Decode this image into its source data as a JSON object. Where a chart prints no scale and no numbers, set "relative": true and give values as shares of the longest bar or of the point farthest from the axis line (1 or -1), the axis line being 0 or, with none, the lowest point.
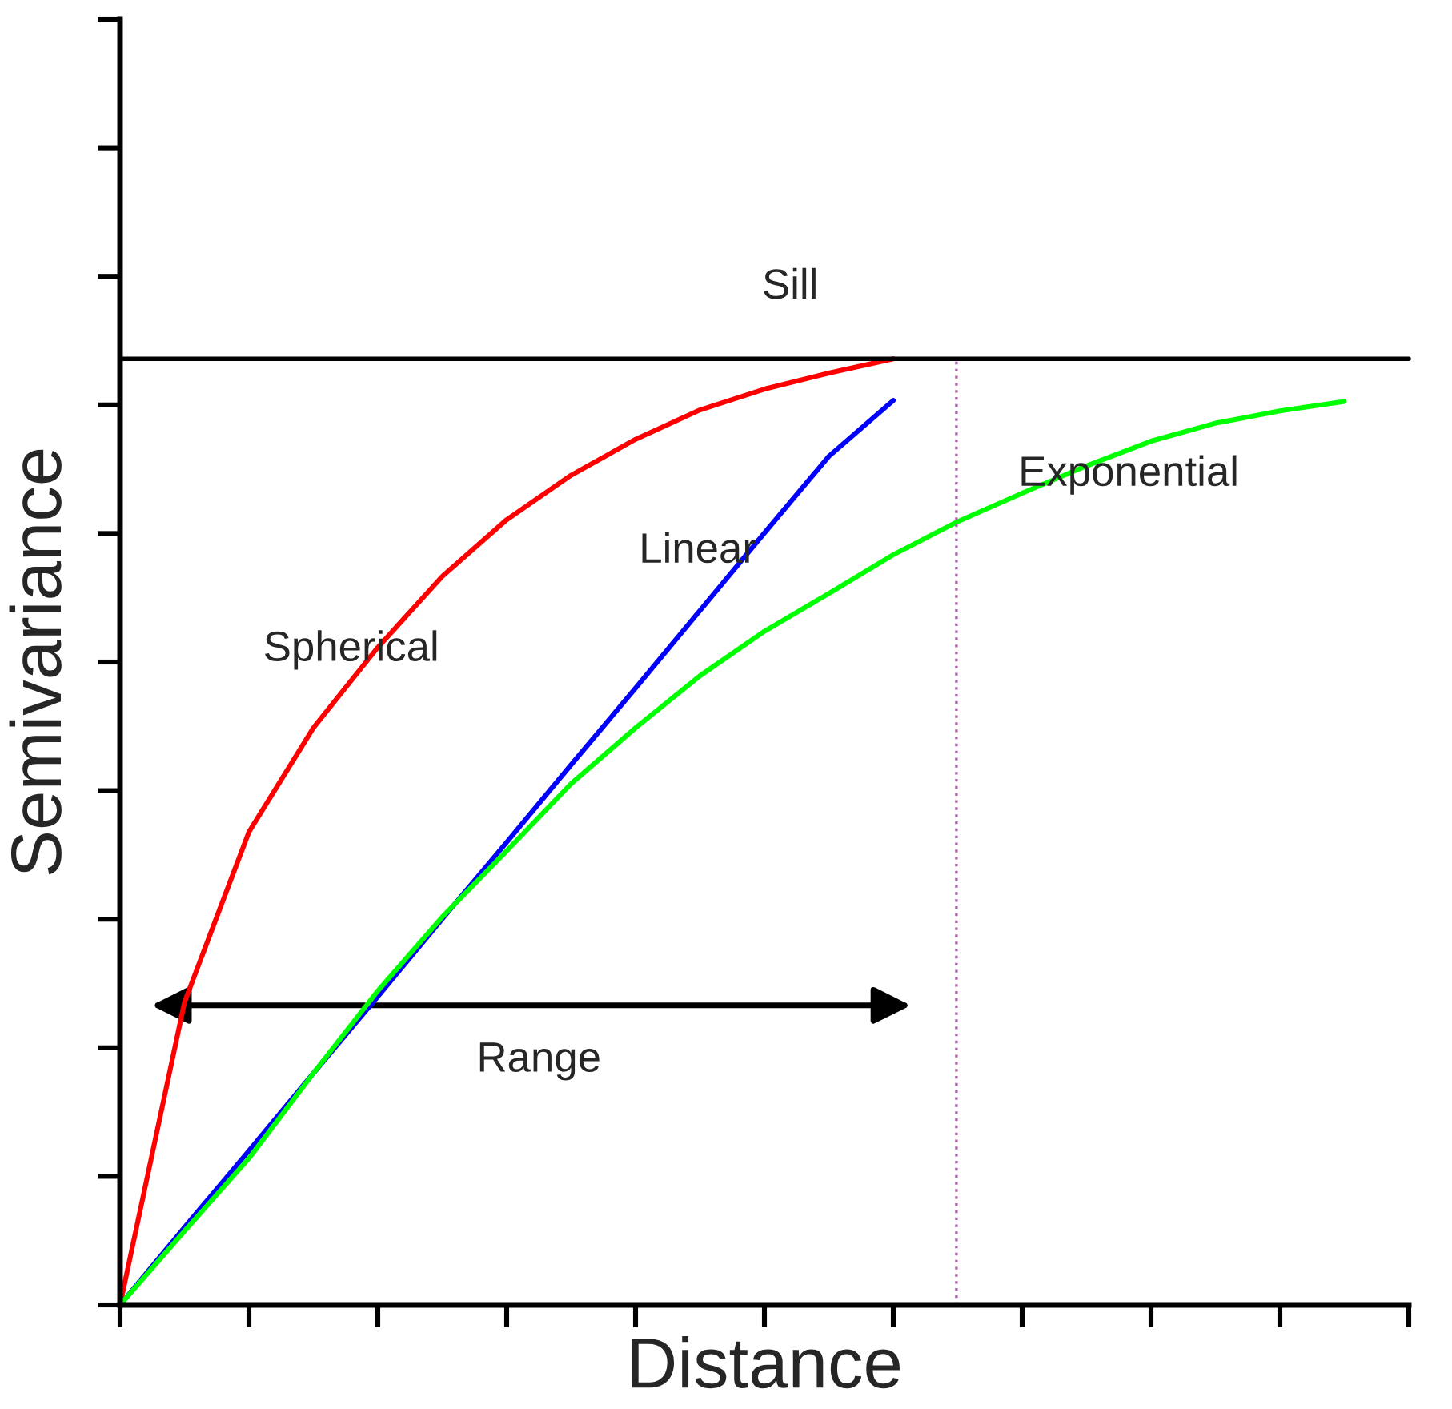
{
  "chart_data": {
    "type": "line",
    "relative": true,
    "xlabel": "Distance",
    "ylabel": "Semivariance",
    "categories": [
      null,
      null,
      null,
      null,
      null,
      null,
      null,
      null,
      null,
      null,
      null,
      null,
      null,
      null,
      null,
      null,
      null,
      null,
      null,
      null,
      null
    ],
    "tick_labels": false,
    "grid": false,
    "legend": false,
    "marker": "none",
    "line_style": "solid",
    "series": [
      {
        "name": "Spherical",
        "color": "#ff0000",
        "values": [
          0,
          0.32,
          0.5,
          0.61,
          0.695,
          0.77,
          0.83,
          0.877,
          0.915,
          0.946,
          0.968,
          0.985,
          1.0,
          null,
          null,
          null,
          null,
          null,
          null,
          null,
          null
        ]
      },
      {
        "name": "Linear",
        "color": "#0000ff",
        "values": [
          0,
          0.082,
          0.163,
          0.245,
          0.326,
          0.408,
          0.489,
          0.571,
          0.652,
          0.734,
          0.816,
          0.897,
          0.956,
          null,
          null,
          null,
          null,
          null,
          null,
          null,
          null
        ]
      },
      {
        "name": "Exponential",
        "color": "#00ff00",
        "values": [
          0,
          0.078,
          0.155,
          0.245,
          0.332,
          0.41,
          0.48,
          0.551,
          0.61,
          0.665,
          0.712,
          0.752,
          0.793,
          0.828,
          0.858,
          0.887,
          0.913,
          0.932,
          0.945,
          0.955,
          null
        ]
      }
    ],
    "ref_lines": [
      {
        "axis": "y",
        "value": 1.0,
        "label": "Sill",
        "color": "#000000",
        "line_style": "solid"
      }
    ],
    "annotations": [
      "Range"
    ]
  }
}
